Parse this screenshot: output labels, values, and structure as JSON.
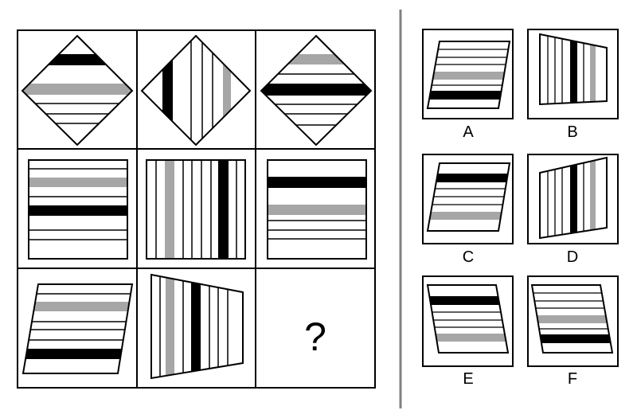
{
  "puzzle": {
    "question_mark": "?",
    "colors": {
      "black": "#000000",
      "gray": "#a6a6a6",
      "white": "#ffffff",
      "divider": "#808080"
    },
    "grid_rows": [
      [
        "diamond-horizontal-stripes",
        "diamond-vertical-stripes",
        "diamond-horizontal-stripes"
      ],
      [
        "square-horizontal-stripes",
        "square-vertical-stripes",
        "square-horizontal-stripes"
      ],
      [
        "parallelogram-horizontal-stripes",
        "trapezoid-vertical-stripes",
        "missing"
      ]
    ]
  },
  "options": [
    {
      "label": "A"
    },
    {
      "label": "B"
    },
    {
      "label": "C"
    },
    {
      "label": "D"
    },
    {
      "label": "E"
    },
    {
      "label": "F"
    }
  ]
}
